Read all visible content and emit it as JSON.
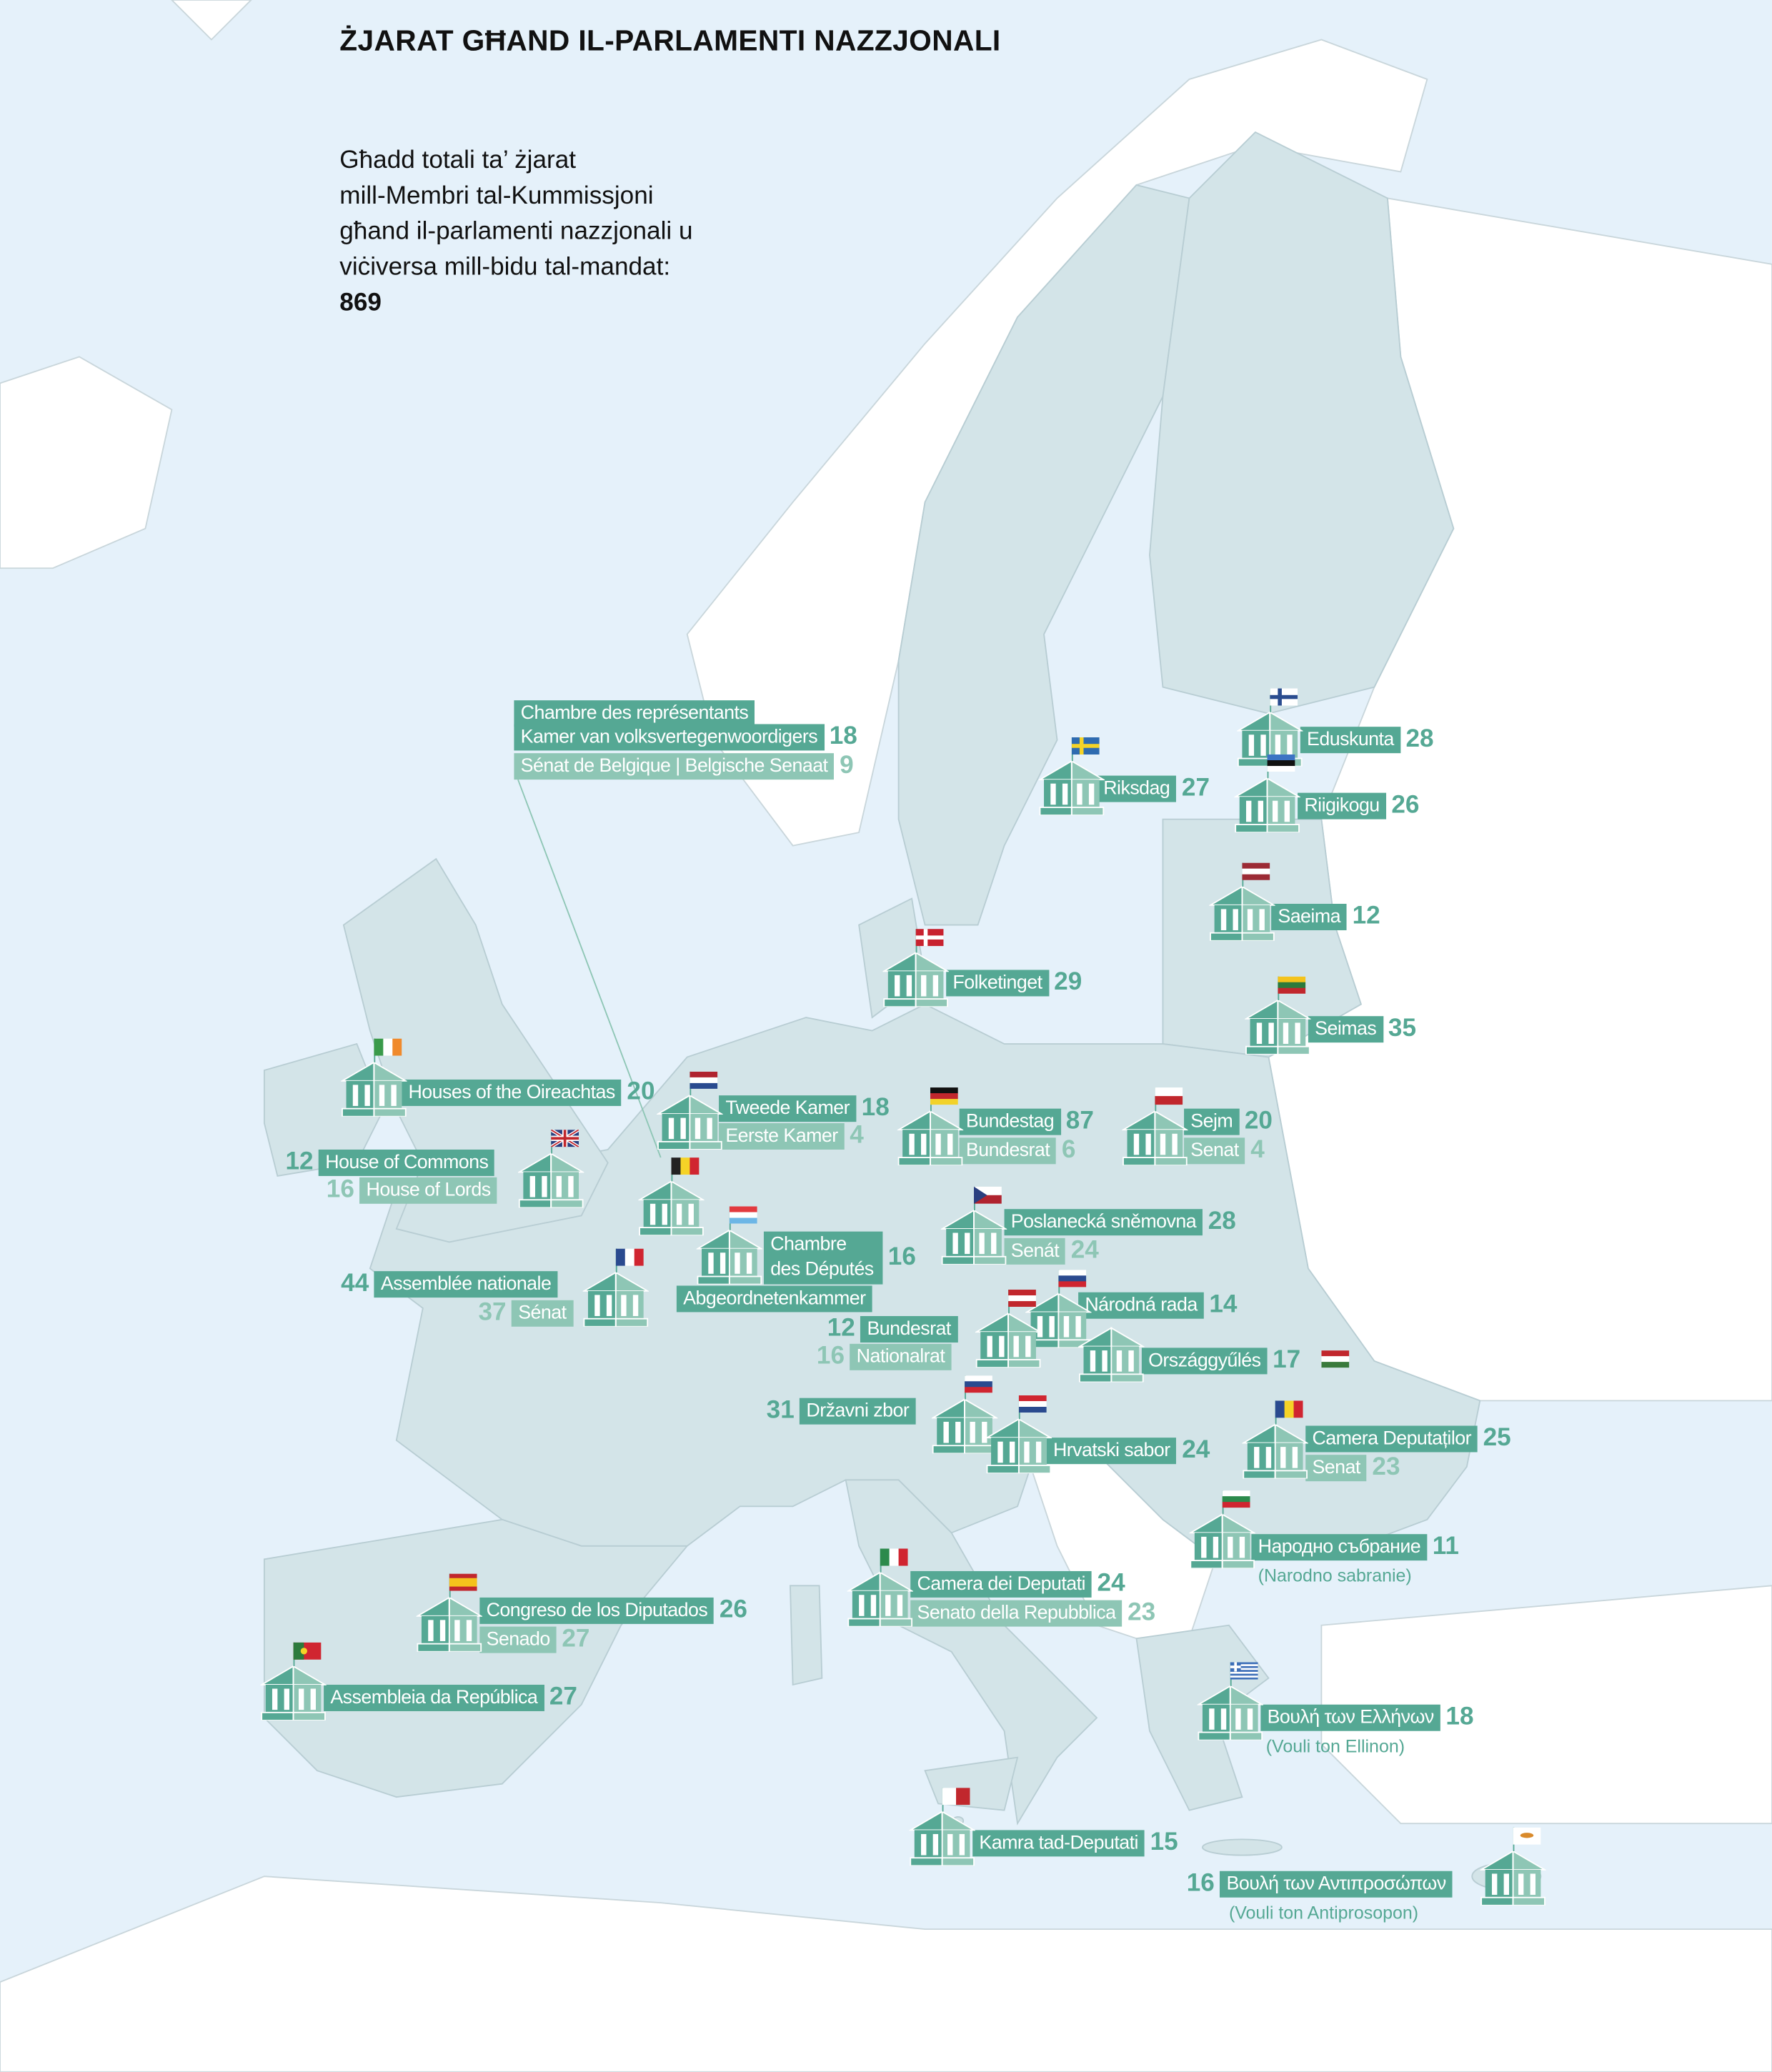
{
  "title": "ŻJARAT GĦAND IL-PARLAMENTI NAZZJONALI",
  "intro": {
    "lines": [
      "Għadd totali ta’ żjarat",
      "mill-Membri tal-Kummissjoni",
      "għand il-parlamenti nazzjonali u",
      "viċiversa mill-bidu tal-mandat:"
    ],
    "total": "869"
  },
  "colors": {
    "primary_chamber": "#55a894",
    "second_chamber": "#8ec6b5",
    "eu_land": "#d3e4e8",
    "non_eu_land": "#ffffff",
    "sea": "#e5f1fa"
  },
  "markers": [
    {
      "country_flag": "flag-belgium",
      "lines": [
        {
          "label": "Chambre des représentants",
          "count": "",
          "tone": "dark"
        },
        {
          "label": "Kamer van volksvertegenwoordigers",
          "count": "18",
          "tone": "dark"
        },
        {
          "label": "Sénat de Belgique | Belgische Senaat",
          "count": "9",
          "tone": "light"
        }
      ]
    },
    {
      "country_flag": "flag-sweden",
      "lines": [
        {
          "label": "Riksdag",
          "count": "27",
          "tone": "dark"
        }
      ]
    },
    {
      "country_flag": "flag-finland",
      "lines": [
        {
          "label": "Eduskunta",
          "count": "28",
          "tone": "dark"
        }
      ]
    },
    {
      "country_flag": "flag-estonia",
      "lines": [
        {
          "label": "Riigikogu",
          "count": "26",
          "tone": "dark"
        }
      ]
    },
    {
      "country_flag": "flag-latvia",
      "lines": [
        {
          "label": "Saeima",
          "count": "12",
          "tone": "dark"
        }
      ]
    },
    {
      "country_flag": "flag-denmark",
      "lines": [
        {
          "label": "Folketinget",
          "count": "29",
          "tone": "dark"
        }
      ]
    },
    {
      "country_flag": "flag-lithuania",
      "lines": [
        {
          "label": "Seimas",
          "count": "35",
          "tone": "dark"
        }
      ]
    },
    {
      "country_flag": "flag-ireland",
      "lines": [
        {
          "label": "Houses of the Oireachtas",
          "count": "20",
          "tone": "dark"
        }
      ]
    },
    {
      "country_flag": "flag-netherlands",
      "lines": [
        {
          "label": "Tweede Kamer",
          "count": "18",
          "tone": "dark"
        },
        {
          "label": "Eerste Kamer",
          "count": "4",
          "tone": "light"
        }
      ]
    },
    {
      "country_flag": "flag-germany",
      "lines": [
        {
          "label": "Bundestag",
          "count": "87",
          "tone": "dark"
        },
        {
          "label": "Bundesrat",
          "count": "6",
          "tone": "light"
        }
      ]
    },
    {
      "country_flag": "flag-poland",
      "lines": [
        {
          "label": "Sejm",
          "count": "20",
          "tone": "dark"
        },
        {
          "label": "Senat",
          "count": "4",
          "tone": "light"
        }
      ]
    },
    {
      "country_flag": "flag-united-kingdom",
      "lines": [
        {
          "label": "House of Commons",
          "count": "12",
          "tone": "dark"
        },
        {
          "label": "House of Lords",
          "count": "16",
          "tone": "light"
        }
      ]
    },
    {
      "country_flag": "flag-czechia",
      "lines": [
        {
          "label": "Poslanecká sněmovna",
          "count": "28",
          "tone": "dark"
        },
        {
          "label": "Senát",
          "count": "24",
          "tone": "light"
        }
      ]
    },
    {
      "country_flag": "flag-luxembourg",
      "lines": [
        {
          "label": "Chambre des Députés",
          "count": "16",
          "tone": "dark"
        },
        {
          "label": "Abgeordnetenkammer",
          "count": "",
          "tone": "dark"
        }
      ]
    },
    {
      "country_flag": "flag-france",
      "lines": [
        {
          "label": "Assemblée nationale",
          "count": "44",
          "tone": "dark"
        },
        {
          "label": "Sénat",
          "count": "37",
          "tone": "light"
        }
      ]
    },
    {
      "country_flag": "flag-slovakia",
      "lines": [
        {
          "label": "Národná rada",
          "count": "14",
          "tone": "dark"
        }
      ]
    },
    {
      "country_flag": "flag-austria",
      "lines": [
        {
          "label": "Bundesrat",
          "count": "12",
          "tone": "dark"
        },
        {
          "label": "Nationalrat",
          "count": "16",
          "tone": "light"
        }
      ]
    },
    {
      "country_flag": "flag-hungary",
      "lines": [
        {
          "label": "Országgyűlés",
          "count": "17",
          "tone": "dark"
        }
      ]
    },
    {
      "country_flag": "flag-slovenia",
      "lines": [
        {
          "label": "Državni zbor",
          "count": "31",
          "tone": "dark"
        }
      ]
    },
    {
      "country_flag": "flag-croatia",
      "lines": [
        {
          "label": "Hrvatski sabor",
          "count": "24",
          "tone": "dark"
        }
      ]
    },
    {
      "country_flag": "flag-romania",
      "lines": [
        {
          "label": "Camera Deputaților",
          "count": "25",
          "tone": "dark"
        },
        {
          "label": "Senat",
          "count": "23",
          "tone": "light"
        }
      ]
    },
    {
      "country_flag": "flag-bulgaria",
      "lines": [
        {
          "label": "Народно събрание",
          "count": "11",
          "tone": "dark"
        }
      ],
      "note": "(Narodno sabranie)"
    },
    {
      "country_flag": "flag-italy",
      "lines": [
        {
          "label": "Camera dei Deputati",
          "count": "24",
          "tone": "dark"
        },
        {
          "label": "Senato della Repubblica",
          "count": "23",
          "tone": "light"
        }
      ]
    },
    {
      "country_flag": "flag-spain",
      "lines": [
        {
          "label": "Congreso de los Diputados",
          "count": "26",
          "tone": "dark"
        },
        {
          "label": "Senado",
          "count": "27",
          "tone": "light"
        }
      ]
    },
    {
      "country_flag": "flag-portugal",
      "lines": [
        {
          "label": "Assembleia da República",
          "count": "27",
          "tone": "dark"
        }
      ]
    },
    {
      "country_flag": "flag-greece",
      "lines": [
        {
          "label": "Βουλή των Ελλήνων",
          "count": "18",
          "tone": "dark"
        }
      ],
      "note": "(Vouli ton Ellinon)"
    },
    {
      "country_flag": "flag-malta",
      "lines": [
        {
          "label": "Kamra tad-Deputati",
          "count": "15",
          "tone": "dark"
        }
      ]
    },
    {
      "country_flag": "flag-cyprus",
      "lines": [
        {
          "label": "Βουλή των Αντιπροσώπων",
          "count": "16",
          "tone": "dark"
        }
      ],
      "note": "(Vouli ton Antiprosopon)"
    }
  ]
}
